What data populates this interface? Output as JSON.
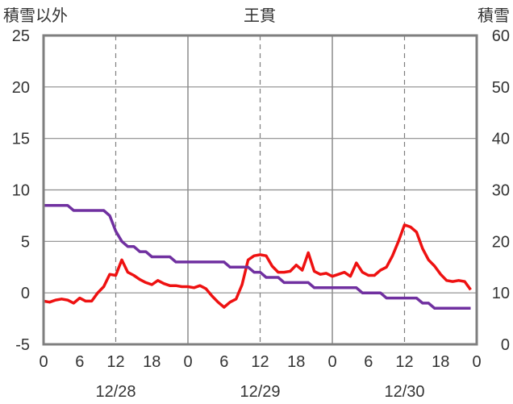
{
  "chart_data": {
    "type": "line",
    "title": "王貫",
    "ylabel_left": "積雪以外",
    "ylabel_right": "積雪",
    "ylim_left": [
      -5,
      25
    ],
    "yticks_left": [
      -5,
      0,
      5,
      10,
      15,
      20,
      25
    ],
    "ylim_right": [
      0,
      60
    ],
    "yticks_right": [
      0,
      10,
      20,
      30,
      40,
      50,
      60
    ],
    "xlim_hours": [
      0,
      72
    ],
    "xtick_labels": [
      "0",
      "6",
      "12",
      "18",
      "0",
      "6",
      "12",
      "18",
      "0",
      "6",
      "12",
      "18",
      "0"
    ],
    "date_labels": [
      {
        "label": "12/28",
        "hour": 12
      },
      {
        "label": "12/29",
        "hour": 36
      },
      {
        "label": "12/30",
        "hour": 60
      }
    ],
    "grid": {
      "vertical_solid_every": 24,
      "vertical_dashed_at": [
        12,
        36,
        60
      ]
    },
    "colors": {
      "temperature": "#ee1111",
      "snow_depth": "#7030a0",
      "frame": "#7f7f7f"
    },
    "series": [
      {
        "axis": "left",
        "color": "#ee1111",
        "x": [
          0,
          1,
          2,
          3,
          4,
          5,
          6,
          7,
          8,
          9,
          10,
          11,
          12,
          13,
          14,
          15,
          16,
          17,
          18,
          19,
          20,
          21,
          22,
          23,
          24,
          25,
          26,
          27,
          28,
          29,
          30,
          31,
          32,
          33,
          34,
          35,
          36,
          37,
          38,
          39,
          40,
          41,
          42,
          43,
          44,
          45,
          46,
          47,
          48,
          49,
          50,
          51,
          52,
          53,
          54,
          55,
          56,
          57,
          58,
          59,
          60,
          61,
          62,
          63,
          64,
          65,
          66,
          67,
          68,
          69,
          70,
          71
        ],
        "values": [
          -0.8,
          -0.9,
          -0.7,
          -0.6,
          -0.7,
          -1.0,
          -0.5,
          -0.8,
          -0.8,
          0.0,
          0.6,
          1.8,
          1.7,
          3.2,
          2.0,
          1.7,
          1.3,
          1.0,
          0.8,
          1.2,
          0.9,
          0.7,
          0.7,
          0.6,
          0.6,
          0.5,
          0.7,
          0.4,
          -0.3,
          -0.9,
          -1.4,
          -0.9,
          -0.6,
          0.8,
          3.2,
          3.6,
          3.7,
          3.6,
          2.6,
          2.0,
          2.0,
          2.1,
          2.7,
          2.2,
          3.9,
          2.1,
          1.8,
          1.9,
          1.6,
          1.8,
          2.0,
          1.6,
          2.9,
          2.0,
          1.7,
          1.7,
          2.2,
          2.5,
          3.6,
          5.0,
          6.6,
          6.4,
          5.9,
          4.3,
          3.2,
          2.6,
          1.8,
          1.2,
          1.1,
          1.2,
          1.1,
          0.3
        ]
      },
      {
        "axis": "right",
        "color": "#7030a0",
        "x": [
          0,
          1,
          2,
          3,
          4,
          5,
          6,
          7,
          8,
          9,
          10,
          11,
          12,
          13,
          14,
          15,
          16,
          17,
          18,
          19,
          20,
          21,
          22,
          23,
          24,
          25,
          26,
          27,
          28,
          29,
          30,
          31,
          32,
          33,
          34,
          35,
          36,
          37,
          38,
          39,
          40,
          41,
          42,
          43,
          44,
          45,
          46,
          47,
          48,
          49,
          50,
          51,
          52,
          53,
          54,
          55,
          56,
          57,
          58,
          59,
          60,
          61,
          62,
          63,
          64,
          65,
          66,
          67,
          68,
          69,
          70,
          71
        ],
        "values": [
          27,
          27,
          27,
          27,
          27,
          26,
          26,
          26,
          26,
          26,
          26,
          25,
          22,
          20,
          19,
          19,
          18,
          18,
          17,
          17,
          17,
          17,
          16,
          16,
          16,
          16,
          16,
          16,
          16,
          16,
          16,
          15,
          15,
          15,
          15,
          14,
          14,
          13,
          13,
          13,
          12,
          12,
          12,
          12,
          12,
          11,
          11,
          11,
          11,
          11,
          11,
          11,
          11,
          10,
          10,
          10,
          10,
          9,
          9,
          9,
          9,
          9,
          9,
          8,
          8,
          7,
          7,
          7,
          7,
          7,
          7,
          7
        ]
      }
    ]
  }
}
